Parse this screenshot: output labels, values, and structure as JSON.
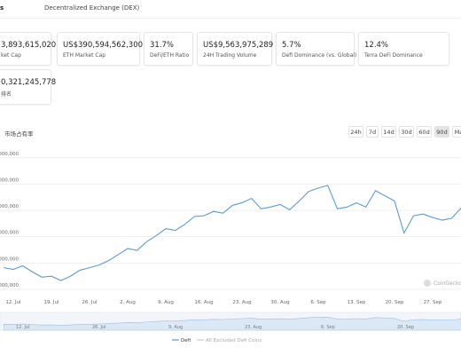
{
  "tabs": [
    "s",
    "Decentralized Exchange (DEX)"
  ],
  "cards": [
    {
      "value": "3,893,615,020",
      "label": "ket Cap"
    },
    {
      "value": "US$390,594,562,300",
      "label": "ETH Market Cap"
    },
    {
      "value": "31.7%",
      "label": "DeFi/ETH Ratio"
    },
    {
      "value": "US$9,563,975,289",
      "label": "24H Trading Volume"
    },
    {
      "value": "5.7%",
      "label": "Defi Dominance (vs. Global)"
    },
    {
      "value": "12.4%",
      "label": "Terra DeFi Dominance"
    },
    {
      "value": "0,321,245,778",
      "label": "排名"
    }
  ],
  "chart_title": "市场占有率",
  "range_buttons": [
    "24h",
    "7d",
    "14d",
    "30d",
    "60d",
    "90d",
    "Ma"
  ],
  "selected_range": 5,
  "watermark": "CoinGecko",
  "chart_data": {
    "type": "line",
    "categories": [
      null,
      "12. Jul",
      null,
      null,
      null,
      "19. Jul",
      null,
      null,
      null,
      "26. Jul",
      null,
      null,
      null,
      "2. Aug",
      null,
      null,
      null,
      "9. Aug",
      null,
      null,
      null,
      "16. Aug",
      null,
      null,
      null,
      "23. Aug",
      null,
      null,
      null,
      "30. Aug",
      null,
      null,
      null,
      "6. Sep",
      null,
      null,
      null,
      "13. Sep",
      null,
      null,
      null,
      "20. Sep",
      null,
      null,
      null,
      "27. Sep",
      null,
      null,
      null
    ],
    "series": [
      {
        "name": "Defi",
        "color": "#5b9bd5",
        "values": [
          66.4,
          65.1,
          67.8,
          63.2,
          59.2,
          59.9,
          56.6,
          59.9,
          64.5,
          66.4,
          68.4,
          71.7,
          76.3,
          80.9,
          79.6,
          86.2,
          90.8,
          96.1,
          94.7,
          99.4,
          105.3,
          105.9,
          109.2,
          107.9,
          113.8,
          115.8,
          119.1,
          111.2,
          112.5,
          114.5,
          110.5,
          117.1,
          124.4,
          127.0,
          129.0,
          111.2,
          112.5,
          115.8,
          112.5,
          125.0,
          121.1,
          117.1,
          92.8,
          105.9,
          107.2,
          104.6,
          102.6,
          104.0,
          111.9
        ]
      },
      {
        "name": "All Excluded Defi Coins",
        "color": "#cccccc"
      }
    ],
    "ylim": [
      45,
      155
    ],
    "yticks": [
      {
        "value": 50,
        "label": "0,000,000"
      },
      {
        "value": 70,
        "label": "0,000,000"
      },
      {
        "value": 90,
        "label": "0,000,000"
      },
      {
        "value": 110,
        "label": "0,000,000"
      },
      {
        "value": 130,
        "label": "0,000,000"
      },
      {
        "value": 150,
        "label": "0,000,000"
      }
    ],
    "grid": true
  }
}
